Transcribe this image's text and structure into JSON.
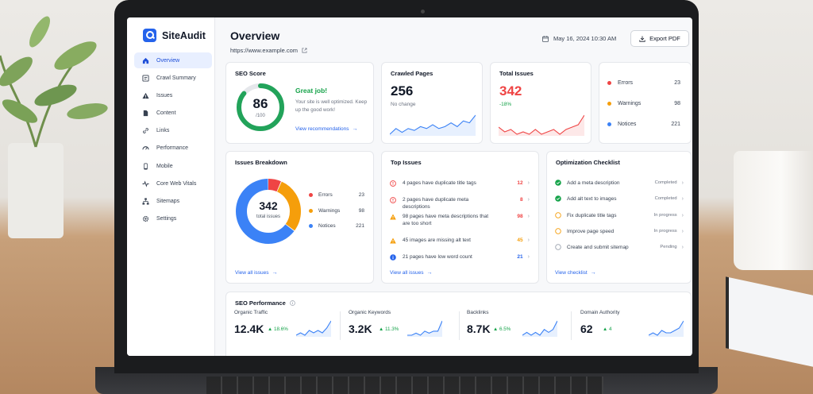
{
  "app": {
    "name": "SiteAudit"
  },
  "sidebar": {
    "items": [
      {
        "label": "Overview",
        "icon": "home-icon",
        "active": true
      },
      {
        "label": "Crawl Summary",
        "icon": "crawl-icon",
        "active": false
      },
      {
        "label": "Issues",
        "icon": "warning-icon",
        "active": false
      },
      {
        "label": "Content",
        "icon": "document-icon",
        "active": false
      },
      {
        "label": "Links",
        "icon": "link-icon",
        "active": false
      },
      {
        "label": "Performance",
        "icon": "gauge-icon",
        "active": false
      },
      {
        "label": "Mobile",
        "icon": "mobile-icon",
        "active": false
      },
      {
        "label": "Core Web Vitals",
        "icon": "pulse-icon",
        "active": false
      },
      {
        "label": "Sitemaps",
        "icon": "sitemap-icon",
        "active": false
      },
      {
        "label": "Settings",
        "icon": "gear-icon",
        "active": false
      }
    ]
  },
  "header": {
    "title": "Overview",
    "url": "https://www.example.com",
    "date": "May 16, 2024 10:30 AM",
    "export_label": "Export PDF"
  },
  "seo_score": {
    "title": "SEO Score",
    "value": "86",
    "max": "/100",
    "score_fraction": 0.86,
    "headline": "Great job!",
    "description": "Your site is well optimized. Keep up the good work!",
    "link": "View recommendations"
  },
  "crawled_pages": {
    "title": "Crawled Pages",
    "value": "256",
    "note": "No change",
    "trend": [
      3,
      6,
      4,
      6,
      5,
      7,
      6,
      8,
      6,
      7,
      9,
      7,
      10,
      9,
      13
    ]
  },
  "total_issues": {
    "title": "Total Issues",
    "value": "342",
    "note": "-18%",
    "trend": [
      9,
      7,
      8,
      6,
      7,
      6,
      8,
      6,
      7,
      8,
      6,
      8,
      9,
      10,
      14
    ]
  },
  "severity": [
    {
      "label": "Errors",
      "value": "23",
      "color": "#ef4444"
    },
    {
      "label": "Warnings",
      "value": "98",
      "color": "#f59e0b"
    },
    {
      "label": "Notices",
      "value": "221",
      "color": "#3b82f6"
    }
  ],
  "issues_breakdown": {
    "title": "Issues Breakdown",
    "total": "342",
    "total_label": "total issues",
    "link": "View all issues",
    "chart_data": {
      "type": "pie",
      "categories": [
        "Errors",
        "Warnings",
        "Notices"
      ],
      "values": [
        23,
        98,
        221
      ]
    }
  },
  "top_issues": {
    "title": "Top Issues",
    "link": "View all issues",
    "items": [
      {
        "text": "4 pages have duplicate title tags",
        "count": "12",
        "icon": "error-icon",
        "color": "#ef4444"
      },
      {
        "text": "2 pages have duplicate meta descriptions",
        "count": "8",
        "icon": "error-icon",
        "color": "#ef4444"
      },
      {
        "text": "98 pages have meta descriptions that are too short",
        "count": "98",
        "icon": "warning-icon",
        "color": "#f59e0b"
      },
      {
        "text": "45 images are missing alt text",
        "count": "45",
        "icon": "warning-icon",
        "color": "#f59e0b"
      },
      {
        "text": "21 pages have low word count",
        "count": "21",
        "icon": "info-icon",
        "color": "#2563eb"
      }
    ]
  },
  "checklist": {
    "title": "Optimization Checklist",
    "link": "View checklist",
    "items": [
      {
        "text": "Add a meta description",
        "status": "Completed",
        "state": "done"
      },
      {
        "text": "Add alt text to images",
        "status": "Completed",
        "state": "done"
      },
      {
        "text": "Fix duplicate title tags",
        "status": "In progress",
        "state": "progress"
      },
      {
        "text": "Improve page speed",
        "status": "In progress",
        "state": "progress"
      },
      {
        "text": "Create and submit sitemap",
        "status": "Pending",
        "state": "pending"
      }
    ]
  },
  "seo_performance": {
    "title": "SEO Performance",
    "metrics": [
      {
        "label": "Organic Traffic",
        "value": "12.4K",
        "delta": "18.6%",
        "trend": [
          3,
          4,
          3,
          5,
          4,
          5,
          4,
          6,
          9
        ]
      },
      {
        "label": "Organic Keywords",
        "value": "3.2K",
        "delta": "11.3%",
        "trend": [
          3,
          3,
          4,
          3,
          5,
          4,
          5,
          5,
          10
        ]
      },
      {
        "label": "Backlinks",
        "value": "8.7K",
        "delta": "6.5%",
        "trend": [
          4,
          5,
          4,
          5,
          4,
          6,
          5,
          6,
          9
        ]
      },
      {
        "label": "Domain Authority",
        "value": "62",
        "delta": "4",
        "trend": [
          3,
          4,
          3,
          5,
          4,
          4,
          5,
          6,
          9
        ]
      }
    ]
  }
}
